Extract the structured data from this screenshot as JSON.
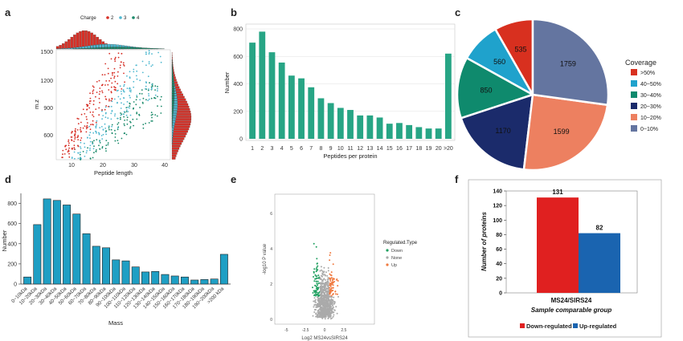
{
  "panels": [
    "a",
    "b",
    "c",
    "d",
    "e",
    "f"
  ],
  "panel_a": {
    "legend_title": "Charge",
    "legend_items": [
      "2",
      "3",
      "4"
    ],
    "colors": [
      "#d73027",
      "#4fb8d0",
      "#1a8a6a"
    ],
    "xlabel": "Peptide length",
    "ylabel": "m.z",
    "xticks": [
      10,
      20,
      30,
      40
    ],
    "yticks": [
      600,
      900,
      1200,
      1500
    ]
  },
  "chart_data": [
    {
      "id": "b",
      "type": "bar",
      "title": "",
      "xlabel": "Peptides per protein",
      "ylabel": "Number",
      "categories": [
        "1",
        "2",
        "3",
        "4",
        "5",
        "6",
        "7",
        "8",
        "9",
        "10",
        "11",
        "12",
        "13",
        "14",
        "15",
        "16",
        "17",
        "18",
        "19",
        "20",
        ">20"
      ],
      "values": [
        700,
        780,
        630,
        555,
        460,
        440,
        375,
        295,
        260,
        225,
        210,
        170,
        170,
        155,
        110,
        115,
        100,
        85,
        75,
        75,
        620
      ],
      "ylim": [
        0,
        800
      ],
      "yticks": [
        0,
        200,
        400,
        600,
        800
      ],
      "color": "#27a585"
    },
    {
      "id": "c",
      "type": "pie",
      "title": "",
      "legend_title": "Coverage",
      "categories": [
        ">50%",
        "40~50%",
        "30~40%",
        "20~30%",
        "10~20%",
        "0~10%"
      ],
      "values": [
        535,
        560,
        850,
        1170,
        1599,
        1759
      ],
      "colors": [
        "#d8301f",
        "#1fa2cc",
        "#0f8a6d",
        "#1b2b6b",
        "#ed8060",
        "#6475a0"
      ]
    },
    {
      "id": "d",
      "type": "bar",
      "title": "",
      "xlabel": "Mass",
      "ylabel": "Number",
      "categories": [
        "0~10kDa",
        "10~20kDa",
        "20~30kDa",
        "30~40kDa",
        "40~50kDa",
        "50~60kDa",
        "60~70kDa",
        "70~80kDa",
        "80~90kDa",
        "90~100kDa",
        "100~110kDa",
        "110~120kDa",
        "120~130kDa",
        "130~140kDa",
        "140~150kDa",
        "150~160kDa",
        "160~170kDa",
        "170~180kDa",
        "180~190kDa",
        "190~200kDa",
        ">200 kDa"
      ],
      "values": [
        70,
        590,
        845,
        830,
        785,
        695,
        500,
        375,
        360,
        240,
        230,
        170,
        120,
        125,
        95,
        80,
        70,
        40,
        45,
        50,
        295
      ],
      "ylim": [
        0,
        900
      ],
      "yticks": [
        0,
        200,
        400,
        600,
        800
      ],
      "color": "#1f9fc4"
    },
    {
      "id": "e",
      "type": "scatter",
      "title": "",
      "xlabel": "Log2 MS24vsSIRS24",
      "ylabel": "-log10 P value",
      "legend_title": "Regulated.Type",
      "legend_items": [
        "Down",
        "None",
        "Up"
      ],
      "colors": [
        "#20a060",
        "#aaaaaa",
        "#f07a40"
      ],
      "xticks": [
        -5,
        -2.5,
        0,
        2.5
      ],
      "yticks": [
        0,
        2,
        4,
        6
      ]
    },
    {
      "id": "f",
      "type": "bar",
      "title": "",
      "xlabel": "Sample comparable group",
      "ylabel": "Number of proteins",
      "categories": [
        "MS24/SIRS24"
      ],
      "series": [
        {
          "name": "Down-regulated",
          "values": [
            131
          ],
          "color": "#e02020"
        },
        {
          "name": "Up-regulated",
          "values": [
            82
          ],
          "color": "#1a64b0"
        }
      ],
      "ylim": [
        0,
        140
      ],
      "yticks": [
        0,
        20,
        40,
        60,
        80,
        100,
        120,
        140
      ]
    }
  ]
}
